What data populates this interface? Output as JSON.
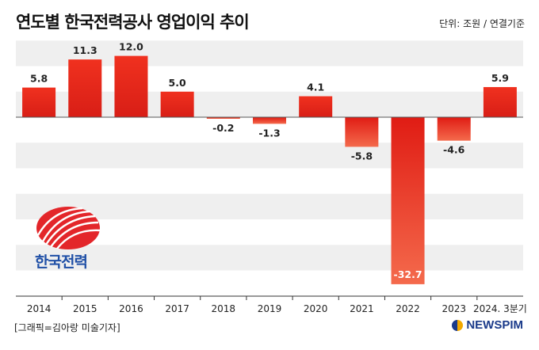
{
  "title": "연도별 한국전력공사 영업이익 추이",
  "unit_label": "단위: 조원 / 연결기준",
  "credit": "[그래픽=김아랑 미술기자]",
  "brand": "NEWSPIM",
  "logo_text": "한국전력",
  "colors": {
    "bar": "#e8281e",
    "bar_light": "#f06a4a",
    "band": "#efefef",
    "logo": "#e3262a",
    "brand": "#1a3a8a"
  },
  "chart_data": {
    "type": "bar",
    "categories": [
      "2014",
      "2015",
      "2016",
      "2017",
      "2018",
      "2019",
      "2020",
      "2021",
      "2022",
      "2023",
      "2024. 3분기"
    ],
    "values": [
      5.8,
      11.3,
      12.0,
      5.0,
      -0.2,
      -1.3,
      4.1,
      -5.8,
      -32.7,
      -4.6,
      5.9
    ],
    "value_labels": [
      "5.8",
      "11.3",
      "12.0",
      "5.0",
      "-0.2",
      "-1.3",
      "4.1",
      "-5.8",
      "-32.7",
      "-4.6",
      "5.9"
    ],
    "ylim": [
      -35,
      15
    ],
    "grid": "horizontal bands",
    "xlabel": "",
    "ylabel": ""
  }
}
